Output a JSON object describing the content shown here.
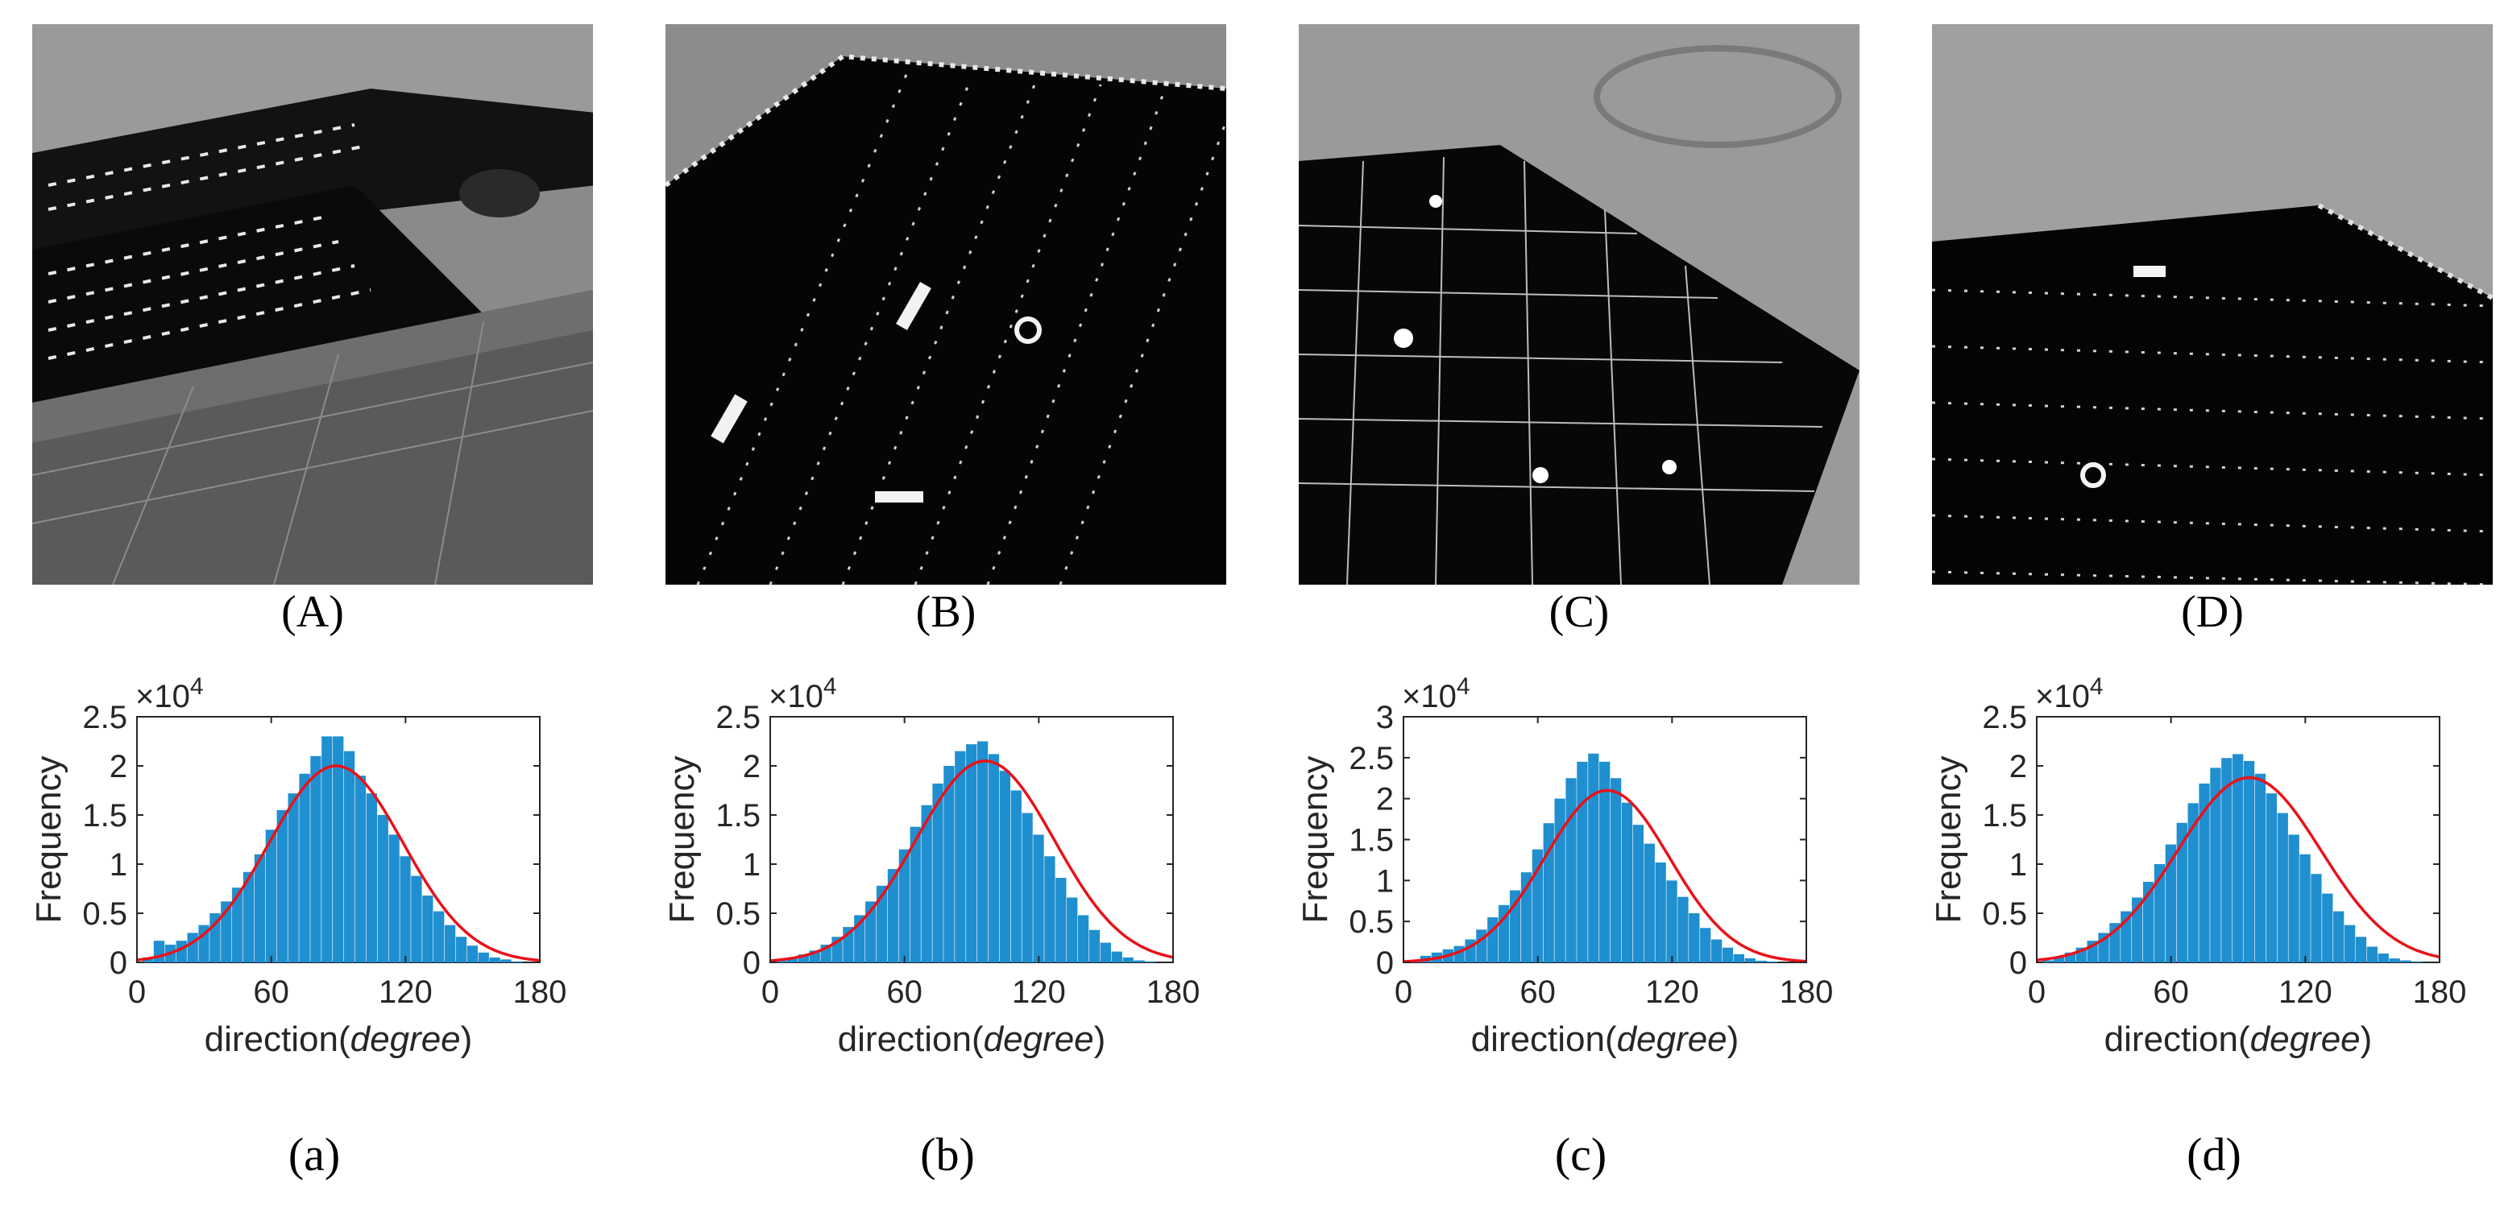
{
  "photos": [
    {
      "label": "(A)"
    },
    {
      "label": "(B)"
    },
    {
      "label": "(C)"
    },
    {
      "label": "(D)"
    }
  ],
  "colors": {
    "bar": "#1f8fcf",
    "fit": "#e8121a",
    "axis": "#262626"
  },
  "chart_data": [
    {
      "type": "bar",
      "panel_label": "(a)",
      "xlabel_prefix": "direction(",
      "xlabel_italic": "degree",
      "xlabel_suffix": ")",
      "ylabel": "Frequency",
      "multiplier": "×10",
      "multiplier_exp": "4",
      "xlim": [
        0,
        180
      ],
      "ylim": [
        0,
        2.5
      ],
      "xticks": [
        0,
        60,
        120,
        180
      ],
      "yticks": [
        0,
        0.5,
        1,
        1.5,
        2,
        2.5
      ],
      "ytick_labels": [
        "0",
        "0.5",
        "1",
        "1.5",
        "2",
        "2.5"
      ],
      "series": [
        {
          "name": "histogram",
          "type": "bar",
          "bin_width": 1,
          "x": [
            5,
            10,
            15,
            20,
            25,
            30,
            35,
            40,
            45,
            50,
            55,
            60,
            65,
            70,
            75,
            80,
            85,
            90,
            95,
            100,
            105,
            110,
            115,
            120,
            125,
            130,
            135,
            140,
            145,
            150,
            155,
            160,
            165,
            170,
            175
          ],
          "values": [
            0.05,
            0.22,
            0.18,
            0.22,
            0.3,
            0.38,
            0.5,
            0.62,
            0.76,
            0.92,
            1.1,
            1.35,
            1.55,
            1.72,
            1.92,
            2.1,
            2.3,
            2.3,
            2.15,
            1.9,
            1.72,
            1.5,
            1.3,
            1.08,
            0.88,
            0.68,
            0.52,
            0.38,
            0.26,
            0.17,
            0.1,
            0.05,
            0.03,
            0.01,
            0.0
          ]
        },
        {
          "name": "gaussian fit",
          "type": "line",
          "mean": 89,
          "sigma": 30,
          "peak": 2.0
        }
      ]
    },
    {
      "type": "bar",
      "panel_label": "(b)",
      "xlabel_prefix": "direction(",
      "xlabel_italic": "degree",
      "xlabel_suffix": ")",
      "ylabel": "Frequency",
      "multiplier": "×10",
      "multiplier_exp": "4",
      "xlim": [
        0,
        180
      ],
      "ylim": [
        0,
        2.5
      ],
      "xticks": [
        0,
        60,
        120,
        180
      ],
      "yticks": [
        0,
        0.5,
        1,
        1.5,
        2,
        2.5
      ],
      "ytick_labels": [
        "0",
        "0.5",
        "1",
        "1.5",
        "2",
        "2.5"
      ],
      "series": [
        {
          "name": "histogram",
          "type": "bar",
          "bin_width": 1,
          "x": [
            5,
            10,
            15,
            20,
            25,
            30,
            35,
            40,
            45,
            50,
            55,
            60,
            65,
            70,
            75,
            80,
            85,
            90,
            95,
            100,
            105,
            110,
            115,
            120,
            125,
            130,
            135,
            140,
            145,
            150,
            155,
            160,
            165,
            170,
            175
          ],
          "values": [
            0.02,
            0.05,
            0.08,
            0.12,
            0.18,
            0.26,
            0.36,
            0.48,
            0.62,
            0.78,
            0.95,
            1.15,
            1.38,
            1.6,
            1.82,
            2.0,
            2.15,
            2.22,
            2.25,
            2.12,
            1.95,
            1.75,
            1.52,
            1.3,
            1.08,
            0.86,
            0.66,
            0.48,
            0.33,
            0.2,
            0.11,
            0.05,
            0.02,
            0.01,
            0.0
          ]
        },
        {
          "name": "gaussian fit",
          "type": "line",
          "mean": 96,
          "sigma": 31,
          "peak": 2.05
        }
      ]
    },
    {
      "type": "bar",
      "panel_label": "(c)",
      "xlabel_prefix": "direction(",
      "xlabel_italic": "degree",
      "xlabel_suffix": ")",
      "ylabel": "Frequency",
      "multiplier": "×10",
      "multiplier_exp": "4",
      "xlim": [
        0,
        180
      ],
      "ylim": [
        0,
        3
      ],
      "xticks": [
        0,
        60,
        120,
        180
      ],
      "yticks": [
        0,
        0.5,
        1,
        1.5,
        2,
        2.5,
        3
      ],
      "ytick_labels": [
        "0",
        "0.5",
        "1",
        "1.5",
        "2",
        "2.5",
        "3"
      ],
      "series": [
        {
          "name": "histogram",
          "type": "bar",
          "bin_width": 1,
          "x": [
            5,
            10,
            15,
            20,
            25,
            30,
            35,
            40,
            45,
            50,
            55,
            60,
            65,
            70,
            75,
            80,
            85,
            90,
            95,
            100,
            105,
            110,
            115,
            120,
            125,
            130,
            135,
            140,
            145,
            150,
            155,
            160,
            165,
            170,
            175
          ],
          "values": [
            0.02,
            0.08,
            0.12,
            0.16,
            0.2,
            0.28,
            0.4,
            0.55,
            0.7,
            0.88,
            1.1,
            1.38,
            1.7,
            2.0,
            2.25,
            2.45,
            2.55,
            2.45,
            2.25,
            1.95,
            1.68,
            1.45,
            1.22,
            1.0,
            0.8,
            0.6,
            0.42,
            0.28,
            0.18,
            0.1,
            0.05,
            0.02,
            0.01,
            0.0,
            0.0
          ]
        },
        {
          "name": "gaussian fit",
          "type": "line",
          "mean": 91,
          "sigma": 28,
          "peak": 2.1
        }
      ]
    },
    {
      "type": "bar",
      "panel_label": "(d)",
      "xlabel_prefix": "direction(",
      "xlabel_italic": "degree",
      "xlabel_suffix": ")",
      "ylabel": "Frequency",
      "multiplier": "×10",
      "multiplier_exp": "4",
      "xlim": [
        0,
        180
      ],
      "ylim": [
        0,
        2.5
      ],
      "xticks": [
        0,
        60,
        120,
        180
      ],
      "yticks": [
        0,
        0.5,
        1,
        1.5,
        2,
        2.5
      ],
      "ytick_labels": [
        "0",
        "0.5",
        "1",
        "1.5",
        "2",
        "2.5"
      ],
      "series": [
        {
          "name": "histogram",
          "type": "bar",
          "bin_width": 1,
          "x": [
            5,
            10,
            15,
            20,
            25,
            30,
            35,
            40,
            45,
            50,
            55,
            60,
            65,
            70,
            75,
            80,
            85,
            90,
            95,
            100,
            105,
            110,
            115,
            120,
            125,
            130,
            135,
            140,
            145,
            150,
            155,
            160,
            165,
            170,
            175
          ],
          "values": [
            0.02,
            0.05,
            0.1,
            0.15,
            0.22,
            0.3,
            0.4,
            0.52,
            0.66,
            0.82,
            1.0,
            1.2,
            1.42,
            1.62,
            1.82,
            1.98,
            2.08,
            2.12,
            2.05,
            1.92,
            1.72,
            1.52,
            1.3,
            1.1,
            0.9,
            0.7,
            0.52,
            0.38,
            0.26,
            0.16,
            0.09,
            0.04,
            0.02,
            0.01,
            0.0
          ]
        },
        {
          "name": "gaussian fit",
          "type": "line",
          "mean": 95,
          "sigma": 32,
          "peak": 1.88
        }
      ]
    }
  ]
}
